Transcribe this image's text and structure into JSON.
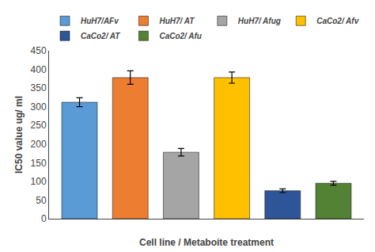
{
  "chart_data": {
    "type": "bar",
    "xlabel": "Cell line / Metaboite treatment",
    "ylabel": "IC50 value ug/ ml",
    "categories": [
      "HuH7/AFv",
      "HuH7/ AT",
      "HuH7/ Afug",
      "CaCo2/ Afv",
      "CaCo2/ AT",
      "CaCo2/ Afu"
    ],
    "values": [
      312,
      378,
      178,
      378,
      75,
      95
    ],
    "errors": [
      12,
      18,
      10,
      15,
      5,
      5
    ],
    "colors": [
      "#5B9BD5",
      "#ED7D31",
      "#A5A5A5",
      "#FFC000",
      "#2E5597",
      "#548235"
    ],
    "ylim": [
      0,
      450
    ],
    "yticks": [
      0,
      50,
      100,
      150,
      200,
      250,
      300,
      350,
      400,
      450
    ],
    "grid": false,
    "legend": "top",
    "tick_labels": "y"
  }
}
